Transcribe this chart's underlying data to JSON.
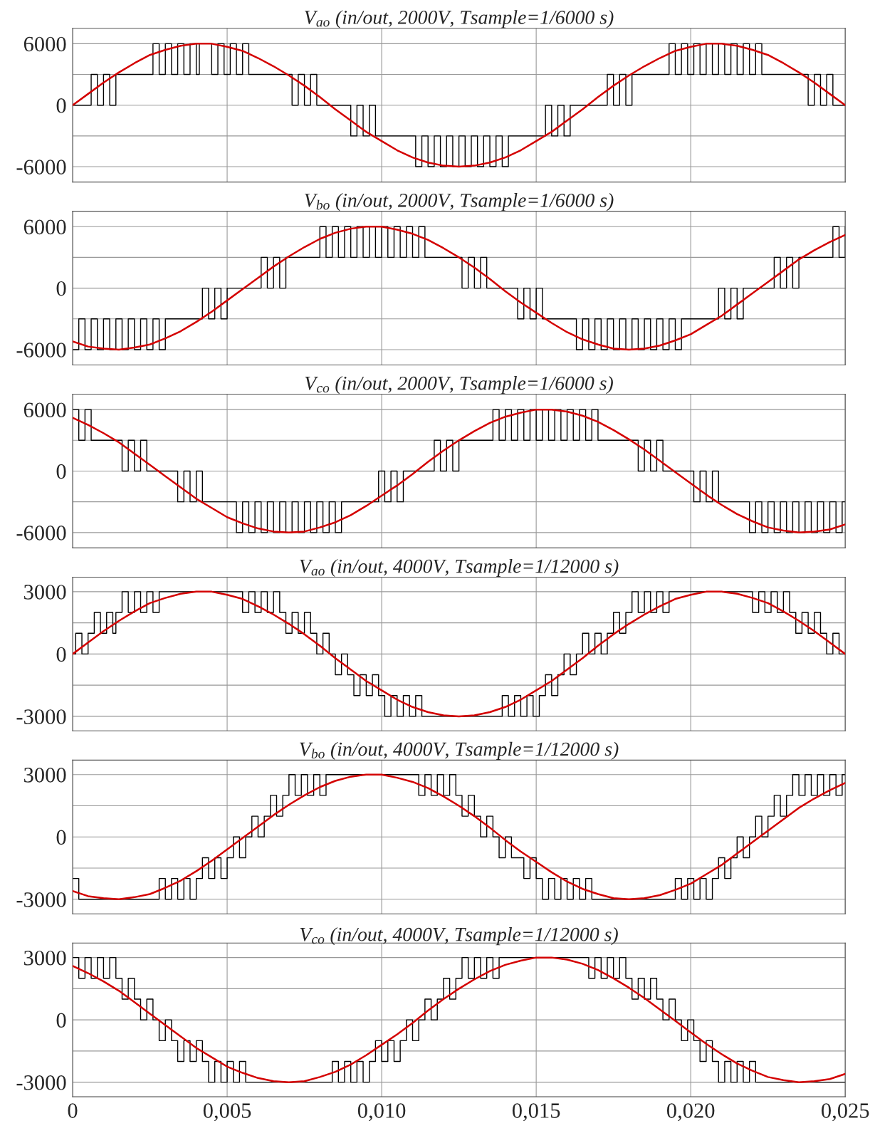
{
  "chart_data": [
    {
      "type": "line",
      "title": "V$_{ao}$ (in/out, 2000V, Tsample=1/6000 s)",
      "xlim": [
        0,
        0.025
      ],
      "ylim": [
        -7500,
        7500
      ],
      "yticks": [
        -6000,
        {
          "value": -3000,
          "label": null
        },
        0,
        {
          "value": 3000,
          "label": null
        },
        6000
      ],
      "grid": true,
      "tick_labels": "y",
      "series": [
        {
          "type": "step",
          "color": "#000000",
          "x": [
            0,
            0.0006,
            0.0008,
            0.001,
            0.0012,
            0.0014,
            0.0026,
            0.0028,
            0.003,
            0.0032,
            0.0034,
            0.0036,
            0.0038,
            0.004,
            0.0041,
            0.0045,
            0.0047,
            0.0049,
            0.0051,
            0.0053,
            0.0055,
            0.0057,
            0.0071,
            0.0073,
            0.0075,
            0.0077,
            0.0079,
            0.009,
            0.0092,
            0.0094,
            0.0096,
            0.0098,
            0.0111,
            0.0113,
            0.0115,
            0.0117,
            0.0119,
            0.0121,
            0.0123,
            0.0125,
            0.0127,
            0.0129,
            0.0131,
            0.0133,
            0.0135,
            0.0137,
            0.0139,
            0.0141,
            0.0153,
            0.0155,
            0.0157,
            0.0159,
            0.0161,
            0.0173,
            0.0175,
            0.0177,
            0.0179,
            0.0181,
            0.0193,
            0.0195,
            0.0197,
            0.0199,
            0.0201,
            0.0203,
            0.0205,
            0.0207,
            0.0209,
            0.0211,
            0.0213,
            0.0215,
            0.0217,
            0.0219,
            0.0221,
            0.0223,
            0.0238,
            0.024,
            0.0242,
            0.0244,
            0.0246,
            0.025
          ],
          "values": [
            0,
            3000,
            0,
            3000,
            0,
            3000,
            6000,
            3000,
            6000,
            3000,
            6000,
            3000,
            6000,
            3000,
            6000,
            3000,
            6000,
            3000,
            6000,
            3000,
            6000,
            3000,
            0,
            3000,
            0,
            3000,
            0,
            -3000,
            0,
            -3000,
            0,
            -3000,
            -6000,
            -3000,
            -6000,
            -3000,
            -6000,
            -3000,
            -6000,
            -3000,
            -6000,
            -3000,
            -6000,
            -3000,
            -6000,
            -3000,
            -6000,
            -3000,
            0,
            -3000,
            0,
            -3000,
            0,
            3000,
            0,
            3000,
            0,
            3000,
            6000,
            3000,
            6000,
            3000,
            6000,
            3000,
            6000,
            3000,
            6000,
            3000,
            6000,
            3000,
            6000,
            3000,
            6000,
            3000,
            0,
            3000,
            0,
            3000,
            0,
            0
          ]
        },
        {
          "type": "line",
          "color": "#d40000",
          "x": [
            0,
            0.0005,
            0.001,
            0.0015,
            0.002,
            0.0025,
            0.003,
            0.0035,
            0.004,
            0.0045,
            0.005,
            0.0055,
            0.006,
            0.0065,
            0.007,
            0.0075,
            0.008,
            0.0085,
            0.009,
            0.0095,
            0.01,
            0.0105,
            0.011,
            0.0115,
            0.012,
            0.0125,
            0.013,
            0.0135,
            0.014,
            0.0145,
            0.015,
            0.0155,
            0.016,
            0.0165,
            0.017,
            0.0175,
            0.018,
            0.0185,
            0.019,
            0.0195,
            0.02,
            0.0205,
            0.021,
            0.0215,
            0.022,
            0.0225,
            0.023,
            0.0235,
            0.024,
            0.0245,
            0.025
          ],
          "values": [
            0,
            1100,
            2200,
            3200,
            4100,
            4900,
            5400,
            5800,
            6000,
            6000,
            5700,
            5300,
            4600,
            3800,
            2900,
            1900,
            800,
            -400,
            -1500,
            -2600,
            -3500,
            -4400,
            -5100,
            -5600,
            -5900,
            -6000,
            -5900,
            -5600,
            -5100,
            -4400,
            -3500,
            -2600,
            -1500,
            -400,
            800,
            1900,
            2900,
            3800,
            4600,
            5300,
            5700,
            6000,
            6000,
            5800,
            5400,
            4900,
            4100,
            3200,
            2200,
            1100,
            0
          ]
        }
      ]
    },
    {
      "type": "line",
      "title": "V$_{bo}$ (in/out, 2000V, Tsample=1/6000 s)",
      "xlim": [
        0,
        0.025
      ],
      "ylim": [
        -7500,
        7500
      ],
      "yticks": [
        -6000,
        {
          "value": -3000,
          "label": null
        },
        0,
        {
          "value": 3000,
          "label": null
        },
        6000
      ],
      "grid": true,
      "tick_labels": "y",
      "series": [
        {
          "type": "step",
          "color": "#000000",
          "x": [
            0,
            0.0002,
            0.0004,
            0.0006,
            0.0008,
            0.001,
            0.0012,
            0.0014,
            0.0016,
            0.0018,
            0.002,
            0.0022,
            0.0024,
            0.0026,
            0.0028,
            0.003,
            0.0042,
            0.0044,
            0.0046,
            0.0048,
            0.005,
            0.0061,
            0.0063,
            0.0065,
            0.0067,
            0.0069,
            0.008,
            0.0082,
            0.0084,
            0.0086,
            0.0088,
            0.009,
            0.0092,
            0.0094,
            0.0096,
            0.0098,
            0.01,
            0.0102,
            0.0104,
            0.0106,
            0.0108,
            0.011,
            0.0112,
            0.0114,
            0.0126,
            0.0128,
            0.013,
            0.0132,
            0.0134,
            0.0144,
            0.0146,
            0.0148,
            0.015,
            0.0152,
            0.0163,
            0.0165,
            0.0167,
            0.0169,
            0.0171,
            0.0173,
            0.0175,
            0.0177,
            0.0179,
            0.0181,
            0.0183,
            0.0185,
            0.0187,
            0.0189,
            0.0191,
            0.0193,
            0.0195,
            0.0197,
            0.0209,
            0.0211,
            0.0213,
            0.0215,
            0.0217,
            0.0227,
            0.0229,
            0.0231,
            0.0233,
            0.0235,
            0.0246,
            0.0248,
            0.025
          ],
          "values": [
            -6000,
            -3000,
            -6000,
            -3000,
            -6000,
            -3000,
            -6000,
            -3000,
            -6000,
            -3000,
            -6000,
            -3000,
            -6000,
            -3000,
            -6000,
            -3000,
            0,
            -3000,
            0,
            -3000,
            0,
            3000,
            0,
            3000,
            0,
            3000,
            6000,
            3000,
            6000,
            3000,
            6000,
            3000,
            6000,
            3000,
            6000,
            3000,
            6000,
            3000,
            6000,
            3000,
            6000,
            3000,
            6000,
            3000,
            0,
            3000,
            0,
            3000,
            0,
            -3000,
            0,
            -3000,
            0,
            -3000,
            -6000,
            -3000,
            -6000,
            -3000,
            -6000,
            -3000,
            -6000,
            -3000,
            -6000,
            -3000,
            -6000,
            -3000,
            -6000,
            -3000,
            -6000,
            -3000,
            -6000,
            -3000,
            0,
            -3000,
            0,
            -3000,
            0,
            3000,
            0,
            3000,
            0,
            3000,
            6000,
            3000,
            6000
          ]
        },
        {
          "type": "line",
          "color": "#d40000",
          "x": [
            0,
            0.0005,
            0.001,
            0.0015,
            0.002,
            0.0025,
            0.003,
            0.0035,
            0.004,
            0.0045,
            0.005,
            0.0055,
            0.006,
            0.0065,
            0.007,
            0.0075,
            0.008,
            0.0085,
            0.009,
            0.0095,
            0.01,
            0.0105,
            0.011,
            0.0115,
            0.012,
            0.0125,
            0.013,
            0.0135,
            0.014,
            0.0145,
            0.015,
            0.0155,
            0.016,
            0.0165,
            0.017,
            0.0175,
            0.018,
            0.0185,
            0.019,
            0.0195,
            0.02,
            0.0205,
            0.021,
            0.0215,
            0.022,
            0.0225,
            0.023,
            0.0235,
            0.024,
            0.0245,
            0.025
          ],
          "values": [
            -5200,
            -5700,
            -5900,
            -6000,
            -5800,
            -5500,
            -4900,
            -4200,
            -3300,
            -2300,
            -1200,
            -100,
            1000,
            2100,
            3100,
            4000,
            4800,
            5400,
            5800,
            6000,
            6000,
            5700,
            5300,
            4700,
            3900,
            3000,
            2000,
            900,
            -300,
            -1400,
            -2400,
            -3400,
            -4300,
            -5000,
            -5500,
            -5900,
            -6000,
            -5900,
            -5600,
            -5100,
            -4500,
            -3600,
            -2700,
            -1600,
            -500,
            600,
            1700,
            2800,
            3700,
            4500,
            5200
          ]
        }
      ]
    },
    {
      "type": "line",
      "title": "V$_{co}$ (in/out, 2000V, Tsample=1/6000 s)",
      "xlim": [
        0,
        0.025
      ],
      "ylim": [
        -7500,
        7500
      ],
      "yticks": [
        -6000,
        {
          "value": -3000,
          "label": null
        },
        0,
        {
          "value": 3000,
          "label": null
        },
        6000
      ],
      "grid": true,
      "tick_labels": "y",
      "series": [
        {
          "type": "step",
          "color": "#000000",
          "x": [
            0,
            0.0002,
            0.0004,
            0.0006,
            0.0016,
            0.0018,
            0.002,
            0.0022,
            0.0024,
            0.0034,
            0.0036,
            0.0038,
            0.004,
            0.0042,
            0.0053,
            0.0055,
            0.0057,
            0.0059,
            0.0061,
            0.0063,
            0.0065,
            0.0067,
            0.0069,
            0.0071,
            0.0073,
            0.0075,
            0.0077,
            0.0079,
            0.0081,
            0.0083,
            0.0085,
            0.0087,
            0.0099,
            0.0101,
            0.0103,
            0.0105,
            0.0107,
            0.0117,
            0.0119,
            0.0121,
            0.0123,
            0.0125,
            0.0136,
            0.0138,
            0.014,
            0.0142,
            0.0144,
            0.0146,
            0.0148,
            0.015,
            0.0152,
            0.0154,
            0.0156,
            0.0158,
            0.016,
            0.0162,
            0.0164,
            0.0166,
            0.0168,
            0.017,
            0.0183,
            0.0185,
            0.0187,
            0.0189,
            0.0191,
            0.0201,
            0.0203,
            0.0205,
            0.0207,
            0.0209,
            0.0219,
            0.0221,
            0.0223,
            0.0225,
            0.0227,
            0.0229,
            0.0231,
            0.0233,
            0.0235,
            0.0237,
            0.0239,
            0.0241,
            0.0243,
            0.0245,
            0.0247,
            0.0249,
            0.025
          ],
          "values": [
            6000,
            3000,
            6000,
            3000,
            0,
            3000,
            0,
            3000,
            0,
            -3000,
            0,
            -3000,
            0,
            -3000,
            -6000,
            -3000,
            -6000,
            -3000,
            -6000,
            -3000,
            -6000,
            -3000,
            -6000,
            -3000,
            -6000,
            -3000,
            -6000,
            -3000,
            -6000,
            -3000,
            -6000,
            -3000,
            0,
            -3000,
            0,
            -3000,
            0,
            3000,
            0,
            3000,
            0,
            3000,
            6000,
            3000,
            6000,
            3000,
            6000,
            3000,
            6000,
            3000,
            6000,
            3000,
            6000,
            3000,
            6000,
            3000,
            6000,
            3000,
            6000,
            3000,
            0,
            3000,
            0,
            3000,
            0,
            -3000,
            0,
            -3000,
            0,
            -3000,
            -6000,
            -3000,
            -6000,
            -3000,
            -6000,
            -3000,
            -6000,
            -3000,
            -6000,
            -3000,
            -6000,
            -3000,
            -6000,
            -3000,
            -6000,
            -3000,
            -3000
          ]
        },
        {
          "type": "line",
          "color": "#d40000",
          "x": [
            0,
            0.0005,
            0.001,
            0.0015,
            0.002,
            0.0025,
            0.003,
            0.0035,
            0.004,
            0.0045,
            0.005,
            0.0055,
            0.006,
            0.0065,
            0.007,
            0.0075,
            0.008,
            0.0085,
            0.009,
            0.0095,
            0.01,
            0.0105,
            0.011,
            0.0115,
            0.012,
            0.0125,
            0.013,
            0.0135,
            0.014,
            0.0145,
            0.015,
            0.0155,
            0.016,
            0.0165,
            0.017,
            0.0175,
            0.018,
            0.0185,
            0.019,
            0.0195,
            0.02,
            0.0205,
            0.021,
            0.0215,
            0.022,
            0.0225,
            0.023,
            0.0235,
            0.024,
            0.0245,
            0.025
          ],
          "values": [
            5200,
            4500,
            3700,
            2800,
            1700,
            600,
            -500,
            -1600,
            -2700,
            -3600,
            -4500,
            -5100,
            -5600,
            -5900,
            -6000,
            -5900,
            -5500,
            -5000,
            -4300,
            -3400,
            -2400,
            -1400,
            -300,
            900,
            2000,
            3000,
            3900,
            4700,
            5300,
            5700,
            6000,
            6000,
            5800,
            5400,
            4800,
            4000,
            3100,
            2100,
            1000,
            -100,
            -1200,
            -2300,
            -3300,
            -4200,
            -4900,
            -5500,
            -5800,
            -6000,
            -5900,
            -5700,
            -5200
          ]
        }
      ]
    },
    {
      "type": "line",
      "title": "V$_{ao}$ (in/out, 4000V, Tsample=1/12000 s)",
      "xlim": [
        0,
        0.025
      ],
      "ylim": [
        -3700,
        3700
      ],
      "yticks": [
        -3000,
        {
          "value": -1500,
          "label": null
        },
        0,
        {
          "value": 1500,
          "label": null
        },
        3000
      ],
      "grid": true,
      "tick_labels": "y",
      "series": [
        {
          "type": "step",
          "color": "#000000",
          "x": [
            0,
            0.0001,
            0.0003,
            0.0005,
            0.0007,
            0.0009,
            0.0011,
            0.0013,
            0.0014,
            0.0016,
            0.0018,
            0.002,
            0.0022,
            0.0024,
            0.0026,
            0.0028,
            0.0055,
            0.0057,
            0.0059,
            0.0061,
            0.0063,
            0.0065,
            0.0067,
            0.0069,
            0.0071,
            0.0073,
            0.0075,
            0.0077,
            0.0079,
            0.0081,
            0.0083,
            0.0085,
            0.0087,
            0.0089,
            0.0091,
            0.0093,
            0.0095,
            0.0097,
            0.0099,
            0.0101,
            0.0103,
            0.0105,
            0.0107,
            0.0109,
            0.0111,
            0.0113,
            0.0139,
            0.0141,
            0.0143,
            0.0145,
            0.0147,
            0.0149,
            0.0151,
            0.0153,
            0.0155,
            0.0157,
            0.0159,
            0.0161,
            0.0163,
            0.0165,
            0.0167,
            0.0169,
            0.0171,
            0.0173,
            0.0175,
            0.0177,
            0.0179,
            0.0181,
            0.0183,
            0.0185,
            0.0187,
            0.0189,
            0.0191,
            0.0193,
            0.022,
            0.0222,
            0.0224,
            0.0226,
            0.0228,
            0.023,
            0.0232,
            0.0234,
            0.0236,
            0.0238,
            0.024,
            0.0242,
            0.0244,
            0.0246,
            0.0248,
            0.025
          ],
          "values": [
            0,
            1000,
            0,
            1000,
            2000,
            1000,
            2000,
            1000,
            2000,
            3000,
            2000,
            3000,
            2000,
            3000,
            2000,
            3000,
            2000,
            3000,
            2000,
            3000,
            2000,
            3000,
            2000,
            1000,
            2000,
            1000,
            2000,
            1000,
            0,
            1000,
            0,
            -1000,
            0,
            -1000,
            -2000,
            -1000,
            -2000,
            -1000,
            -2000,
            -3000,
            -2000,
            -3000,
            -2000,
            -3000,
            -2000,
            -3000,
            -2000,
            -3000,
            -2000,
            -3000,
            -2000,
            -3000,
            -2000,
            -1000,
            -2000,
            -1000,
            0,
            -1000,
            0,
            1000,
            0,
            1000,
            0,
            1000,
            2000,
            1000,
            2000,
            3000,
            2000,
            3000,
            2000,
            3000,
            2000,
            3000,
            2000,
            3000,
            2000,
            3000,
            2000,
            3000,
            2000,
            1000,
            2000,
            1000,
            2000,
            1000,
            0,
            1000,
            0,
            0
          ]
        },
        {
          "type": "line",
          "color": "#d40000",
          "x": [
            0,
            0.0005,
            0.001,
            0.0015,
            0.002,
            0.0025,
            0.003,
            0.0035,
            0.004,
            0.0045,
            0.005,
            0.0055,
            0.006,
            0.0065,
            0.007,
            0.0075,
            0.008,
            0.0085,
            0.009,
            0.0095,
            0.01,
            0.0105,
            0.011,
            0.0115,
            0.012,
            0.0125,
            0.013,
            0.0135,
            0.014,
            0.0145,
            0.015,
            0.0155,
            0.016,
            0.0165,
            0.017,
            0.0175,
            0.018,
            0.0185,
            0.019,
            0.0195,
            0.02,
            0.0205,
            0.021,
            0.0215,
            0.022,
            0.0225,
            0.023,
            0.0235,
            0.024,
            0.0245,
            0.025
          ],
          "values": [
            0,
            550,
            1100,
            1600,
            2050,
            2450,
            2700,
            2900,
            3000,
            3000,
            2850,
            2650,
            2300,
            1900,
            1450,
            950,
            400,
            -200,
            -750,
            -1300,
            -1750,
            -2200,
            -2550,
            -2800,
            -2950,
            -3000,
            -2950,
            -2800,
            -2550,
            -2200,
            -1750,
            -1300,
            -750,
            -200,
            400,
            950,
            1450,
            1900,
            2300,
            2650,
            2850,
            3000,
            3000,
            2900,
            2700,
            2450,
            2050,
            1600,
            1100,
            550,
            0
          ]
        }
      ]
    },
    {
      "type": "line",
      "title": "V$_{bo}$ (in/out, 4000V, Tsample=1/12000 s)",
      "xlim": [
        0,
        0.025
      ],
      "ylim": [
        -3700,
        3700
      ],
      "yticks": [
        -3000,
        {
          "value": -1500,
          "label": null
        },
        0,
        {
          "value": 1500,
          "label": null
        },
        3000
      ],
      "grid": true,
      "tick_labels": "y",
      "series": [
        {
          "type": "step",
          "color": "#000000",
          "x": [
            0,
            0.0002,
            0.0028,
            0.003,
            0.0032,
            0.0034,
            0.0036,
            0.0038,
            0.004,
            0.0042,
            0.0044,
            0.0046,
            0.0048,
            0.005,
            0.0052,
            0.0054,
            0.0056,
            0.0058,
            0.006,
            0.0062,
            0.0064,
            0.0066,
            0.0068,
            0.007,
            0.0072,
            0.0074,
            0.0076,
            0.0078,
            0.008,
            0.0082,
            0.0112,
            0.0114,
            0.0116,
            0.0118,
            0.012,
            0.0122,
            0.0124,
            0.0126,
            0.0128,
            0.013,
            0.0132,
            0.0134,
            0.0136,
            0.0138,
            0.014,
            0.0142,
            0.0144,
            0.0146,
            0.0148,
            0.015,
            0.0152,
            0.0154,
            0.0156,
            0.0158,
            0.016,
            0.0162,
            0.0164,
            0.0166,
            0.0168,
            0.0195,
            0.0197,
            0.0199,
            0.0201,
            0.0203,
            0.0205,
            0.0207,
            0.0209,
            0.0211,
            0.0213,
            0.0215,
            0.0217,
            0.0219,
            0.0221,
            0.0223,
            0.0225,
            0.0227,
            0.0229,
            0.0231,
            0.0233,
            0.0235,
            0.0237,
            0.0239,
            0.0241,
            0.0243,
            0.0245,
            0.0247,
            0.0249,
            0.025
          ],
          "values": [
            -2000,
            -3000,
            -2000,
            -3000,
            -2000,
            -3000,
            -2000,
            -3000,
            -2000,
            -1000,
            -2000,
            -1000,
            -2000,
            -1000,
            0,
            -1000,
            0,
            1000,
            0,
            1000,
            2000,
            1000,
            2000,
            3000,
            2000,
            3000,
            2000,
            3000,
            2000,
            3000,
            2000,
            3000,
            2000,
            3000,
            2000,
            3000,
            2000,
            1000,
            2000,
            1000,
            0,
            1000,
            0,
            -1000,
            0,
            -1000,
            -1000,
            -2000,
            -1000,
            -2000,
            -3000,
            -2000,
            -3000,
            -2000,
            -3000,
            -2000,
            -3000,
            -2000,
            -3000,
            -2000,
            -3000,
            -2000,
            -3000,
            -2000,
            -3000,
            -2000,
            -1000,
            -2000,
            -1000,
            0,
            -1000,
            0,
            1000,
            0,
            1000,
            2000,
            1000,
            2000,
            3000,
            2000,
            3000,
            2000,
            3000,
            2000,
            3000,
            2000,
            3000,
            3000
          ]
        },
        {
          "type": "line",
          "color": "#d40000",
          "x": [
            0,
            0.0005,
            0.001,
            0.0015,
            0.002,
            0.0025,
            0.003,
            0.0035,
            0.004,
            0.0045,
            0.005,
            0.0055,
            0.006,
            0.0065,
            0.007,
            0.0075,
            0.008,
            0.0085,
            0.009,
            0.0095,
            0.01,
            0.0105,
            0.011,
            0.0115,
            0.012,
            0.0125,
            0.013,
            0.0135,
            0.014,
            0.0145,
            0.015,
            0.0155,
            0.016,
            0.0165,
            0.017,
            0.0175,
            0.018,
            0.0185,
            0.019,
            0.0195,
            0.02,
            0.0205,
            0.021,
            0.0215,
            0.022,
            0.0225,
            0.023,
            0.0235,
            0.024,
            0.0245,
            0.025
          ],
          "values": [
            -2600,
            -2850,
            -2950,
            -3000,
            -2900,
            -2750,
            -2450,
            -2100,
            -1650,
            -1150,
            -600,
            -50,
            500,
            1050,
            1550,
            2000,
            2400,
            2700,
            2900,
            3000,
            3000,
            2850,
            2650,
            2350,
            1950,
            1500,
            1000,
            450,
            -150,
            -700,
            -1200,
            -1700,
            -2150,
            -2500,
            -2750,
            -2950,
            -3000,
            -2950,
            -2800,
            -2550,
            -2250,
            -1800,
            -1350,
            -800,
            -250,
            300,
            850,
            1400,
            1850,
            2250,
            2600
          ]
        }
      ]
    },
    {
      "type": "line",
      "title": "V$_{co}$ (in/out, 4000V, Tsample=1/12000 s)",
      "xlim": [
        0,
        0.025
      ],
      "xticks": [
        0,
        {
          "value": 0.005,
          "label": "0,005"
        },
        {
          "value": 0.01,
          "label": "0,010"
        },
        {
          "value": 0.015,
          "label": "0,015"
        },
        {
          "value": 0.02,
          "label": "0,020"
        },
        {
          "value": 0.025,
          "label": "0,025"
        }
      ],
      "ylim": [
        -3700,
        3700
      ],
      "yticks": [
        -3000,
        {
          "value": -1500,
          "label": null
        },
        0,
        {
          "value": 1500,
          "label": null
        },
        3000
      ],
      "grid": true,
      "series": [
        {
          "type": "step",
          "color": "#000000",
          "x": [
            0,
            0.0002,
            0.0004,
            0.0006,
            0.0008,
            0.001,
            0.0012,
            0.0014,
            0.0016,
            0.0018,
            0.002,
            0.0022,
            0.0024,
            0.0026,
            0.0028,
            0.003,
            0.0032,
            0.0034,
            0.0036,
            0.0038,
            0.004,
            0.0042,
            0.0044,
            0.0046,
            0.0048,
            0.005,
            0.0052,
            0.0054,
            0.0056,
            0.0084,
            0.0086,
            0.0088,
            0.009,
            0.0092,
            0.0094,
            0.0096,
            0.0098,
            0.01,
            0.0102,
            0.0104,
            0.0106,
            0.0108,
            0.011,
            0.0112,
            0.0114,
            0.0116,
            0.0118,
            0.012,
            0.0122,
            0.0124,
            0.0126,
            0.0128,
            0.013,
            0.0132,
            0.0134,
            0.0136,
            0.0138,
            0.0167,
            0.0169,
            0.0171,
            0.0173,
            0.0175,
            0.0177,
            0.0179,
            0.0181,
            0.0183,
            0.0185,
            0.0187,
            0.0189,
            0.0191,
            0.0193,
            0.0195,
            0.0197,
            0.0199,
            0.0201,
            0.0203,
            0.0205,
            0.0207,
            0.0209,
            0.0211,
            0.0213,
            0.0215,
            0.0217,
            0.0219,
            0.0221,
            0.025
          ],
          "values": [
            3000,
            2000,
            3000,
            2000,
            3000,
            2000,
            3000,
            2000,
            1000,
            2000,
            1000,
            0,
            1000,
            0,
            -1000,
            0,
            -1000,
            -2000,
            -1000,
            -2000,
            -1000,
            -2000,
            -3000,
            -2000,
            -3000,
            -2000,
            -3000,
            -2000,
            -3000,
            -2000,
            -3000,
            -2000,
            -3000,
            -2000,
            -3000,
            -2000,
            -1000,
            -2000,
            -1000,
            -2000,
            -1000,
            0,
            -1000,
            0,
            1000,
            0,
            1000,
            2000,
            1000,
            2000,
            3000,
            2000,
            3000,
            2000,
            3000,
            2000,
            3000,
            2000,
            3000,
            2000,
            3000,
            2000,
            3000,
            2000,
            1000,
            2000,
            1000,
            2000,
            1000,
            0,
            1000,
            0,
            -1000,
            0,
            -1000,
            -2000,
            -1000,
            -2000,
            -3000,
            -2000,
            -3000,
            -2000,
            -3000,
            -2000,
            -3000,
            -3000
          ]
        },
        {
          "type": "line",
          "color": "#d40000",
          "x": [
            0,
            0.0005,
            0.001,
            0.0015,
            0.002,
            0.0025,
            0.003,
            0.0035,
            0.004,
            0.0045,
            0.005,
            0.0055,
            0.006,
            0.0065,
            0.007,
            0.0075,
            0.008,
            0.0085,
            0.009,
            0.0095,
            0.01,
            0.0105,
            0.011,
            0.0115,
            0.012,
            0.0125,
            0.013,
            0.0135,
            0.014,
            0.0145,
            0.015,
            0.0155,
            0.016,
            0.0165,
            0.017,
            0.0175,
            0.018,
            0.0185,
            0.019,
            0.0195,
            0.02,
            0.0205,
            0.021,
            0.0215,
            0.022,
            0.0225,
            0.023,
            0.0235,
            0.024,
            0.0245,
            0.025
          ],
          "values": [
            2600,
            2250,
            1850,
            1400,
            850,
            300,
            -250,
            -800,
            -1350,
            -1800,
            -2250,
            -2550,
            -2800,
            -2950,
            -3000,
            -2950,
            -2750,
            -2500,
            -2150,
            -1700,
            -1200,
            -700,
            -150,
            450,
            1000,
            1500,
            1950,
            2350,
            2650,
            2850,
            3000,
            3000,
            2900,
            2700,
            2400,
            2000,
            1550,
            1050,
            500,
            -50,
            -600,
            -1150,
            -1650,
            -2100,
            -2450,
            -2750,
            -2900,
            -3000,
            -2950,
            -2850,
            -2600
          ]
        }
      ]
    }
  ]
}
